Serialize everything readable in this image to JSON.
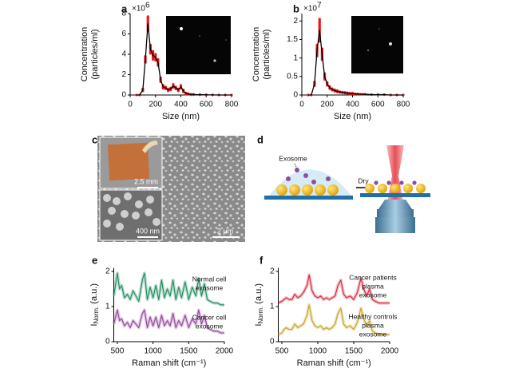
{
  "chart_data": [
    {
      "type": "line",
      "panel": "a",
      "x_label": "Size (nm)",
      "y_label": [
        "Concentration",
        "(particles/ml)"
      ],
      "y_multiplier": "×10",
      "y_exponent": "6",
      "xlim": [
        0,
        800
      ],
      "xticks": [
        0,
        200,
        400,
        600,
        800
      ],
      "ylim": [
        0,
        8
      ],
      "yticks": [
        0,
        2,
        4,
        6,
        8
      ],
      "x": [
        50,
        75,
        100,
        120,
        140,
        160,
        180,
        200,
        220,
        240,
        260,
        280,
        300,
        320,
        340,
        360,
        380,
        400,
        420,
        440,
        460,
        480,
        500,
        550,
        600,
        650,
        700,
        750,
        800
      ],
      "series": [
        {
          "color": "#000000",
          "error_color": "#e41a1c",
          "values": [
            0,
            0,
            0.5,
            3.5,
            7.0,
            4.5,
            3.9,
            3.7,
            3.2,
            1.5,
            0.8,
            0.7,
            0.5,
            0.6,
            0.9,
            0.7,
            0.5,
            0.8,
            0.4,
            0.15,
            0.1,
            0.05,
            0.05,
            0.03,
            0.02,
            0.01,
            0,
            0,
            0
          ],
          "error": [
            0,
            0,
            0.1,
            0.3,
            0.7,
            0.4,
            0.4,
            0.3,
            0.3,
            0.2,
            0.15,
            0.1,
            0.1,
            0.1,
            0.15,
            0.1,
            0.1,
            0.15,
            0.1,
            0.05,
            0.03,
            0.02,
            0.02,
            0.01,
            0.01,
            0,
            0,
            0,
            0
          ]
        }
      ]
    },
    {
      "type": "line",
      "panel": "b",
      "x_label": "Size (nm)",
      "y_label": [
        "Concentration",
        "(particles/ml)"
      ],
      "y_multiplier": "×10",
      "y_exponent": "7",
      "xlim": [
        0,
        800
      ],
      "xticks": [
        0,
        200,
        400,
        600,
        800
      ],
      "ylim": [
        0,
        2.2
      ],
      "yticks": [
        0,
        0.5,
        1,
        1.5,
        2
      ],
      "x": [
        50,
        75,
        100,
        120,
        140,
        160,
        180,
        200,
        220,
        240,
        260,
        280,
        300,
        320,
        340,
        360,
        380,
        400,
        420,
        440,
        460,
        480,
        500,
        550,
        600,
        650,
        700,
        750,
        800
      ],
      "series": [
        {
          "color": "#000000",
          "error_color": "#e41a1c",
          "values": [
            0,
            0,
            0.3,
            1.2,
            1.75,
            1.1,
            0.5,
            0.3,
            0.2,
            0.15,
            0.12,
            0.1,
            0.08,
            0.07,
            0.06,
            0.05,
            0.04,
            0.04,
            0.03,
            0.03,
            0.02,
            0.02,
            0.02,
            0.01,
            0.01,
            0.01,
            0,
            0,
            0
          ],
          "error": [
            0,
            0,
            0.05,
            0.15,
            0.3,
            0.15,
            0.08,
            0.04,
            0.03,
            0.02,
            0.02,
            0.02,
            0.01,
            0.01,
            0.01,
            0.01,
            0.01,
            0.01,
            0,
            0,
            0,
            0,
            0,
            0,
            0,
            0,
            0,
            0,
            0
          ]
        }
      ]
    },
    {
      "type": "spectrum",
      "panel": "e",
      "x_label": "Raman shift (cm⁻¹)",
      "y_label_main": "I",
      "y_label_sub": "Norm.",
      "y_label_end": " (a.u.)",
      "xlim": [
        450,
        2000
      ],
      "xticks": [
        500,
        1000,
        1500,
        2000
      ],
      "ylim": [
        0,
        2.1
      ],
      "yticks": [
        0,
        1,
        2
      ],
      "x": [
        450,
        500,
        530,
        560,
        600,
        640,
        680,
        720,
        760,
        800,
        850,
        880,
        920,
        960,
        1000,
        1040,
        1080,
        1120,
        1160,
        1200,
        1240,
        1280,
        1320,
        1360,
        1400,
        1450,
        1500,
        1550,
        1600,
        1640,
        1680,
        1720,
        1760,
        1800,
        1850,
        1900,
        1950,
        2000
      ],
      "series": [
        {
          "name": [
            "Normal cell",
            "exosome"
          ],
          "color": "#1f8a5e",
          "values": [
            1.3,
            1.95,
            1.5,
            1.6,
            1.25,
            1.35,
            1.2,
            1.45,
            1.3,
            1.15,
            1.75,
            1.95,
            1.2,
            1.55,
            1.25,
            1.6,
            1.2,
            1.75,
            1.25,
            1.5,
            1.3,
            1.75,
            1.2,
            1.55,
            1.25,
            1.7,
            1.2,
            1.55,
            1.3,
            1.8,
            1.3,
            1.65,
            1.2,
            1.15,
            1.1,
            1.1,
            1.05,
            1.05
          ]
        },
        {
          "name": [
            "Cancer cell",
            "exosome"
          ],
          "color": "#93449a",
          "values": [
            0.5,
            0.9,
            0.6,
            0.65,
            0.45,
            0.55,
            0.4,
            0.6,
            0.5,
            0.4,
            0.8,
            0.9,
            0.4,
            0.7,
            0.45,
            0.7,
            0.4,
            0.75,
            0.45,
            0.6,
            0.45,
            0.8,
            0.4,
            0.6,
            0.45,
            0.75,
            0.4,
            0.65,
            0.5,
            0.9,
            0.5,
            0.75,
            0.4,
            0.35,
            0.3,
            0.3,
            0.25,
            0.25
          ]
        }
      ]
    },
    {
      "type": "spectrum",
      "panel": "f",
      "x_label": "Raman shift (cm⁻¹)",
      "y_label_main": "I",
      "y_label_sub": "Norm.",
      "y_label_end": " (a.u.)",
      "xlim": [
        450,
        2000
      ],
      "xticks": [
        500,
        1000,
        1500,
        2000
      ],
      "ylim": [
        0,
        2.1
      ],
      "yticks": [
        0,
        1,
        2
      ],
      "x": [
        450,
        500,
        530,
        560,
        600,
        640,
        680,
        720,
        760,
        800,
        850,
        880,
        920,
        960,
        1000,
        1040,
        1080,
        1120,
        1160,
        1200,
        1240,
        1280,
        1320,
        1360,
        1400,
        1450,
        1500,
        1550,
        1600,
        1640,
        1680,
        1720,
        1760,
        1800,
        1850,
        1900,
        1950,
        2000
      ],
      "series": [
        {
          "name": [
            "Cancer patients",
            "plasma",
            "exosome"
          ],
          "color": "#d7263d",
          "values": [
            1.1,
            1.15,
            1.2,
            1.25,
            1.2,
            1.2,
            1.35,
            1.25,
            1.3,
            1.4,
            1.6,
            1.9,
            1.45,
            1.3,
            1.25,
            1.3,
            1.2,
            1.25,
            1.2,
            1.25,
            1.3,
            1.6,
            1.75,
            1.35,
            1.25,
            1.3,
            1.2,
            1.4,
            1.8,
            1.5,
            1.3,
            1.5,
            1.2,
            1.15,
            1.1,
            1.1,
            1.1,
            1.1
          ]
        },
        {
          "name": [
            "Healthy controls",
            "plasma",
            "exosome"
          ],
          "color": "#c9a227",
          "values": [
            0.2,
            0.25,
            0.35,
            0.4,
            0.35,
            0.35,
            0.5,
            0.4,
            0.45,
            0.5,
            0.75,
            1.05,
            0.6,
            0.45,
            0.4,
            0.45,
            0.35,
            0.4,
            0.35,
            0.4,
            0.5,
            0.8,
            0.95,
            0.5,
            0.4,
            0.45,
            0.35,
            0.55,
            0.95,
            0.65,
            0.45,
            0.6,
            0.3,
            0.25,
            0.2,
            0.2,
            0.2,
            0.2
          ]
        }
      ]
    }
  ],
  "panel_c": {
    "panel": "c",
    "scale_bars": [
      "2.5 mm",
      "400 nm",
      "2 μm"
    ]
  },
  "panel_d": {
    "panel": "d",
    "exosome_label": "Exosome",
    "arrow_label": "Dry"
  }
}
